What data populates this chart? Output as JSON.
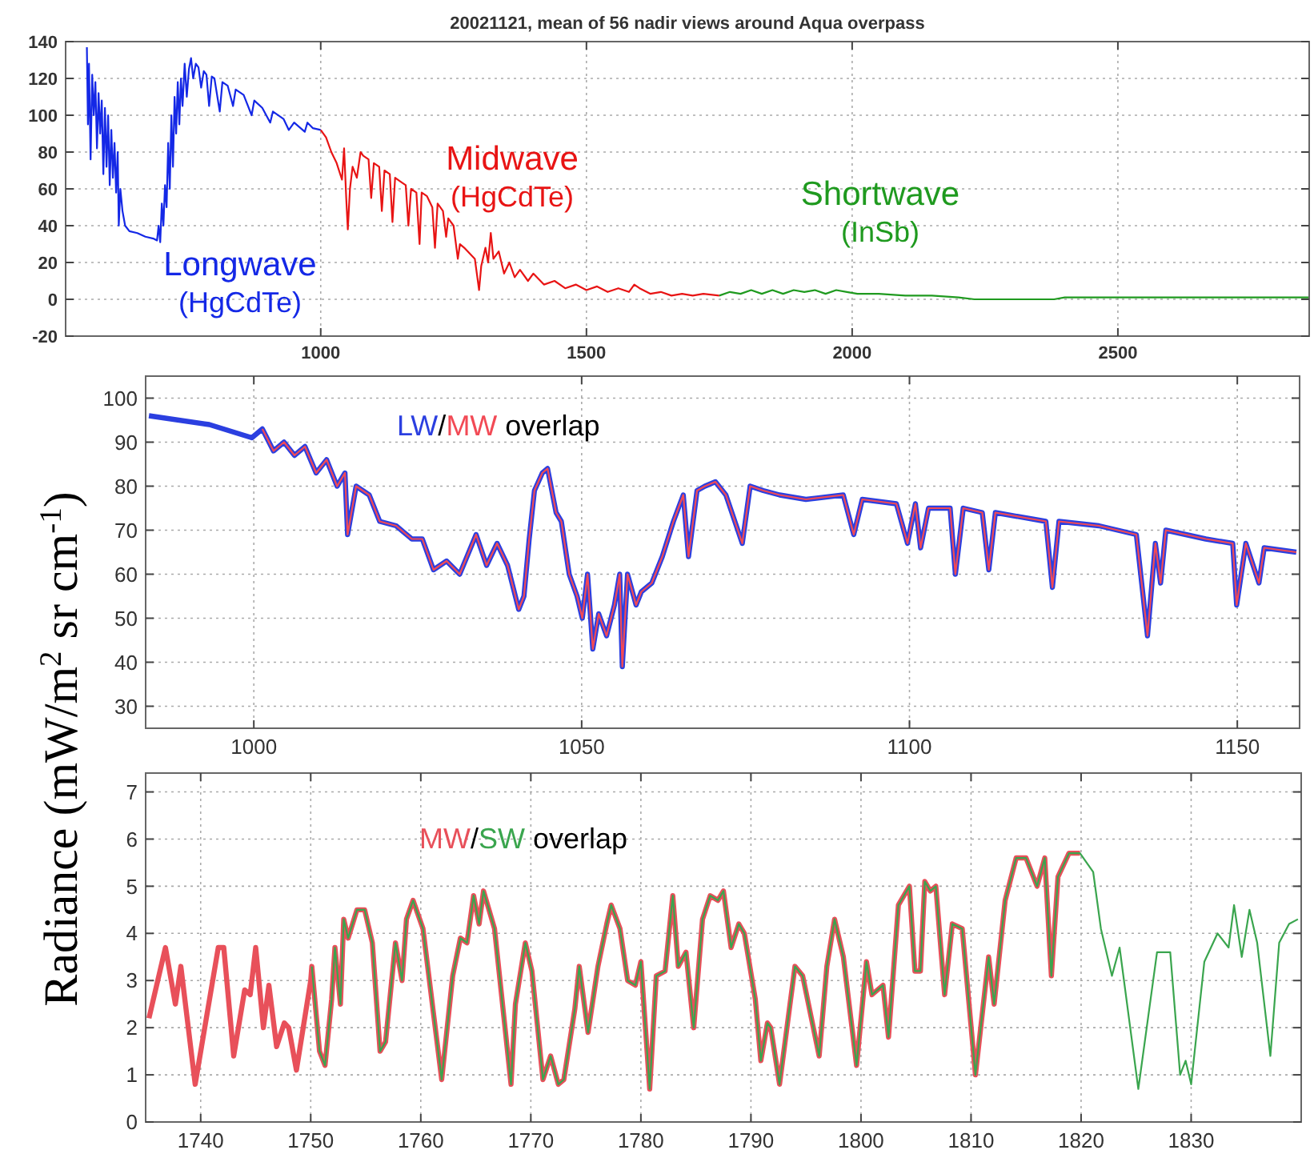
{
  "chart_data": [
    {
      "type": "line",
      "title": "20021121, mean of 56 nadir views around Aqua overpass",
      "xlim": [
        520,
        2860
      ],
      "ylim": [
        -20,
        140
      ],
      "xticks": [
        1000,
        1500,
        2000,
        2500
      ],
      "yticks": [
        -20,
        0,
        20,
        40,
        60,
        80,
        100,
        120,
        140
      ],
      "grid": true,
      "series": [
        {
          "name": "Longwave (HgCdTe)",
          "color": "#1428e6",
          "x": [
            560,
            562,
            564,
            567,
            570,
            573,
            576,
            579,
            582,
            585,
            588,
            591,
            594,
            597,
            600,
            603,
            606,
            609,
            612,
            615,
            618,
            620,
            623,
            627,
            632,
            640,
            655,
            670,
            685,
            692,
            695,
            698,
            701,
            704,
            707,
            710,
            713,
            716,
            719,
            722,
            725,
            728,
            731,
            734,
            737,
            740,
            744,
            748,
            752,
            756,
            760,
            765,
            770,
            775,
            780,
            785,
            790,
            795,
            800,
            810,
            815,
            825,
            835,
            840,
            855,
            870,
            875,
            890,
            905,
            910,
            930,
            940,
            950,
            970,
            975,
            985,
            1000
          ],
          "values": [
            137,
            95,
            128,
            76,
            122,
            100,
            118,
            82,
            112,
            90,
            108,
            68,
            104,
            72,
            100,
            62,
            92,
            66,
            85,
            58,
            80,
            40,
            60,
            48,
            40,
            37,
            36,
            34,
            33,
            32,
            40,
            31,
            52,
            40,
            62,
            50,
            85,
            60,
            100,
            72,
            110,
            90,
            118,
            95,
            120,
            105,
            128,
            110,
            125,
            131,
            120,
            128,
            126,
            115,
            124,
            122,
            105,
            121,
            120,
            102,
            118,
            116,
            105,
            114,
            111,
            100,
            108,
            104,
            96,
            102,
            98,
            92,
            96,
            91,
            96,
            93,
            92
          ]
        },
        {
          "name": "Midwave (HgCdTe)",
          "color": "#e81414",
          "x": [
            1000,
            1010,
            1020,
            1030,
            1040,
            1044,
            1048,
            1051,
            1055,
            1060,
            1068,
            1075,
            1080,
            1090,
            1095,
            1100,
            1110,
            1115,
            1120,
            1130,
            1135,
            1140,
            1150,
            1160,
            1165,
            1170,
            1180,
            1186,
            1190,
            1200,
            1210,
            1215,
            1220,
            1230,
            1236,
            1240,
            1250,
            1258,
            1262,
            1270,
            1280,
            1290,
            1298,
            1302,
            1310,
            1315,
            1320,
            1325,
            1335,
            1345,
            1355,
            1365,
            1375,
            1390,
            1400,
            1420,
            1440,
            1460,
            1480,
            1500,
            1520,
            1540,
            1560,
            1580,
            1590,
            1600,
            1620,
            1640,
            1660,
            1680,
            1700,
            1720,
            1750
          ],
          "values": [
            92,
            88,
            80,
            74,
            65,
            82,
            55,
            38,
            60,
            72,
            66,
            80,
            78,
            76,
            55,
            74,
            72,
            48,
            70,
            68,
            42,
            66,
            64,
            62,
            40,
            60,
            58,
            30,
            58,
            56,
            50,
            28,
            52,
            48,
            34,
            44,
            40,
            22,
            30,
            28,
            25,
            22,
            5,
            18,
            28,
            20,
            36,
            22,
            26,
            14,
            20,
            12,
            16,
            10,
            14,
            8,
            10,
            6,
            8,
            5,
            7,
            4,
            6,
            4,
            8,
            6,
            3,
            4,
            2,
            3,
            2,
            3,
            2
          ]
        },
        {
          "name": "Shortwave (InSb)",
          "color": "#1f9a1f",
          "x": [
            1750,
            1770,
            1790,
            1810,
            1830,
            1850,
            1870,
            1890,
            1910,
            1930,
            1950,
            1970,
            1990,
            2010,
            2050,
            2100,
            2150,
            2200,
            2230,
            2300,
            2380,
            2400,
            2500,
            2600,
            2700,
            2860
          ],
          "values": [
            2,
            4,
            3,
            5,
            3,
            5,
            3,
            5,
            4,
            5,
            3,
            5,
            4,
            3,
            3,
            2,
            2,
            1,
            0,
            0,
            0,
            1,
            1,
            1,
            1,
            1
          ]
        }
      ]
    },
    {
      "type": "line",
      "ylabel": "Radiance (mW/m$^{2}$ sr cm$^{-1}$)",
      "xlim": [
        983.5,
        1159.5
      ],
      "ylim": [
        25,
        105
      ],
      "xticks": [
        1000,
        1050,
        1100,
        1150
      ],
      "yticks": [
        30,
        40,
        50,
        60,
        70,
        80,
        90,
        100
      ],
      "grid": true,
      "annotations": [
        "/",
        "overlap"
      ],
      "series": [
        {
          "name": "LW",
          "color": "#2b3fe0",
          "x": [
            984,
            993.2,
            999.7,
            1001.3,
            1003,
            1004.6,
            1006.2,
            1007.8,
            1009.5,
            1011.1,
            1012.7,
            1013.9,
            1014.3,
            1015.6,
            1017.6,
            1019.2,
            1021.7,
            1024.1,
            1025.7,
            1027.4,
            1029.4,
            1031.4,
            1033.9,
            1035.5,
            1037.1,
            1038.7,
            1040.4,
            1041.2,
            1042,
            1042.8,
            1044,
            1044.8,
            1046.1,
            1046.9,
            1048.1,
            1049.3,
            1050.1,
            1050.9,
            1051.7,
            1052.6,
            1053.8,
            1055,
            1055.8,
            1056.2,
            1057,
            1058.3,
            1059.1,
            1060.7,
            1062.3,
            1064,
            1065.5,
            1066.3,
            1067.6,
            1068.8,
            1070.4,
            1072,
            1074.5,
            1075.7,
            1077.7,
            1080.2,
            1084.2,
            1089.9,
            1091.5,
            1092.8,
            1098,
            1099.7,
            1100.9,
            1101.7,
            1102.9,
            1106.2,
            1107,
            1108.2,
            1111.1,
            1112.1,
            1113.1,
            1120.8,
            1121.8,
            1122.8,
            1128.9,
            1134.6,
            1136.3,
            1137.5,
            1138.3,
            1139.1,
            1145.2,
            1149.3,
            1149.9,
            1151.3,
            1153.3,
            1154.1,
            1159
          ],
          "values": [
            96,
            94,
            91,
            93,
            88,
            90,
            87,
            89,
            83,
            86,
            80,
            83,
            69,
            80,
            78,
            72,
            71,
            68,
            68,
            61,
            63,
            60,
            69,
            62,
            67,
            62,
            52,
            55,
            68,
            79,
            83,
            84,
            74,
            72,
            60,
            55,
            50,
            60,
            43,
            51,
            46,
            53,
            60,
            39,
            60,
            53,
            56,
            58,
            64,
            72,
            78,
            64,
            79,
            80,
            81,
            78,
            67,
            80,
            79,
            78,
            77,
            78,
            69,
            77,
            76,
            67,
            76,
            66,
            75,
            75,
            60,
            75,
            74,
            61,
            74,
            72,
            57,
            72,
            71,
            69,
            46,
            67,
            58,
            70,
            68,
            67,
            53,
            67,
            58,
            66,
            65
          ]
        },
        {
          "name": "MW",
          "color": "#f24a55",
          "x": [
            1001.3,
            1003,
            1004.6,
            1006.2,
            1007.8,
            1009.5,
            1011.1,
            1012.7,
            1013.9,
            1014.3,
            1015.6,
            1017.6,
            1019.2,
            1021.7,
            1024.1,
            1025.7,
            1027.4,
            1029.4,
            1031.4,
            1033.9,
            1035.5,
            1037.1,
            1038.7,
            1040.4,
            1041.2,
            1042,
            1042.8,
            1044,
            1044.8,
            1046.1,
            1046.9,
            1048.1,
            1049.3,
            1050.1,
            1050.9,
            1051.7,
            1052.6,
            1053.8,
            1055,
            1055.8,
            1056.2,
            1057,
            1058.3,
            1059.1,
            1060.7,
            1062.3,
            1064,
            1065.5,
            1066.3,
            1067.6,
            1068.8,
            1070.4,
            1072,
            1074.5,
            1075.7,
            1077.7,
            1080.2,
            1084.2,
            1089.9,
            1091.5,
            1092.8,
            1098,
            1099.7,
            1100.9,
            1101.7,
            1102.9,
            1106.2,
            1107,
            1108.2,
            1111.1,
            1112.1,
            1113.1,
            1120.8,
            1121.8,
            1122.8,
            1128.9,
            1134.6,
            1136.3,
            1137.5,
            1138.3,
            1139.1,
            1145.2,
            1149.3,
            1149.9,
            1151.3,
            1153.3,
            1154.1,
            1159
          ],
          "values": [
            93,
            88,
            90,
            87,
            89,
            83,
            86,
            80,
            83,
            69,
            80,
            78,
            72,
            71,
            68,
            68,
            61,
            63,
            60,
            69,
            62,
            67,
            62,
            52,
            55,
            68,
            79,
            83,
            84,
            74,
            72,
            60,
            55,
            50,
            60,
            43,
            51,
            46,
            53,
            60,
            39,
            60,
            53,
            56,
            58,
            64,
            72,
            78,
            64,
            79,
            80,
            81,
            78,
            67,
            80,
            79,
            78,
            77,
            78,
            69,
            77,
            76,
            67,
            76,
            66,
            75,
            75,
            60,
            75,
            74,
            61,
            74,
            72,
            57,
            72,
            71,
            69,
            46,
            67,
            58,
            70,
            68,
            67,
            53,
            67,
            58,
            66,
            65
          ]
        }
      ]
    },
    {
      "type": "line",
      "xlim": [
        1735,
        1840
      ],
      "ylim": [
        0,
        7.4
      ],
      "xticks": [
        1740,
        1750,
        1760,
        1770,
        1780,
        1790,
        1800,
        1810,
        1820,
        1830
      ],
      "yticks": [
        0,
        1,
        2,
        3,
        4,
        5,
        6,
        7
      ],
      "grid": true,
      "annotations": [
        "/",
        "overlap"
      ],
      "series": [
        {
          "name": "MW",
          "color": "#e8505a",
          "x": [
            1735.3,
            1736.8,
            1737.7,
            1738.2,
            1739.5,
            1741.6,
            1742.1,
            1743,
            1744,
            1744.5,
            1745,
            1745.7,
            1746.2,
            1746.9,
            1747.6,
            1748,
            1748.7,
            1750,
            1750.1,
            1750.8,
            1751.3,
            1751.9,
            1752.2,
            1752.7,
            1753,
            1753.4,
            1754.2,
            1754.9,
            1755.6,
            1756.3,
            1756.8,
            1757.7,
            1758.3,
            1758.7,
            1759.3,
            1760.2,
            1761.9,
            1762.9,
            1763.6,
            1764.2,
            1764.8,
            1765.3,
            1765.7,
            1766.7,
            1768.2,
            1768.6,
            1769.5,
            1770.1,
            1771.1,
            1771.8,
            1772.5,
            1773,
            1774,
            1774.4,
            1775.2,
            1776.1,
            1776.9,
            1777.3,
            1778.1,
            1778.8,
            1779.5,
            1780,
            1780.8,
            1781.4,
            1782.2,
            1782.9,
            1783.4,
            1784.1,
            1784.8,
            1785.6,
            1786.3,
            1787,
            1787.5,
            1788.2,
            1788.9,
            1789.4,
            1790.4,
            1790.9,
            1791.5,
            1791.8,
            1792.6,
            1794,
            1794.7,
            1796.2,
            1796.9,
            1797.6,
            1798.4,
            1799.6,
            1800.5,
            1801,
            1802,
            1802.5,
            1803.4,
            1804.4,
            1804.9,
            1805.4,
            1805.8,
            1806.3,
            1806.8,
            1807.6,
            1808.3,
            1809.2,
            1810.4,
            1811.6,
            1812.1,
            1813.1,
            1814.1,
            1815,
            1816,
            1816.7,
            1817.3,
            1817.9,
            1818.9,
            1819.9
          ],
          "values": [
            2.2,
            3.7,
            2.5,
            3.3,
            0.8,
            3.7,
            3.7,
            1.4,
            2.8,
            2.7,
            3.7,
            2.0,
            2.9,
            1.6,
            2.1,
            2.0,
            1.1,
            3.0,
            3.3,
            1.5,
            1.2,
            2.6,
            3.7,
            2.5,
            4.3,
            3.9,
            4.5,
            4.5,
            3.8,
            1.5,
            1.7,
            3.8,
            3.0,
            4.3,
            4.7,
            4.1,
            0.9,
            3.1,
            3.9,
            3.8,
            4.8,
            4.2,
            4.9,
            4.1,
            0.8,
            2.5,
            3.8,
            3.2,
            0.9,
            1.4,
            0.8,
            0.9,
            2.4,
            3.3,
            1.9,
            3.3,
            4.2,
            4.6,
            4.1,
            3.0,
            2.9,
            3.4,
            0.7,
            3.1,
            3.2,
            4.8,
            3.3,
            3.6,
            2.0,
            4.3,
            4.8,
            4.7,
            4.9,
            3.7,
            4.2,
            4.0,
            2.6,
            1.3,
            2.1,
            2.0,
            0.8,
            3.3,
            3.1,
            1.4,
            3.3,
            4.3,
            3.5,
            1.2,
            3.4,
            2.7,
            2.9,
            1.8,
            4.6,
            5.0,
            3.2,
            3.2,
            5.1,
            4.9,
            5.0,
            2.7,
            4.2,
            4.1,
            1.0,
            3.5,
            2.5,
            4.7,
            5.6,
            5.6,
            5.0,
            5.6,
            3.1,
            5.2,
            5.7,
            5.7
          ]
        },
        {
          "name": "SW",
          "color": "#3aa54e",
          "x": [
            1750.1,
            1750.8,
            1751.3,
            1751.9,
            1752.2,
            1752.7,
            1753,
            1753.4,
            1754.2,
            1754.9,
            1755.6,
            1756.3,
            1756.8,
            1757.7,
            1758.3,
            1758.7,
            1759.3,
            1760.2,
            1761.9,
            1762.9,
            1763.6,
            1764.2,
            1764.8,
            1765.3,
            1765.7,
            1766.7,
            1768.2,
            1768.6,
            1769.5,
            1770.1,
            1771.1,
            1771.8,
            1772.5,
            1773,
            1774,
            1774.4,
            1775.2,
            1776.1,
            1776.9,
            1777.3,
            1778.1,
            1778.8,
            1779.5,
            1780,
            1780.8,
            1781.4,
            1782.2,
            1782.9,
            1783.4,
            1784.1,
            1784.8,
            1785.6,
            1786.3,
            1787,
            1787.5,
            1788.2,
            1788.9,
            1789.4,
            1790.4,
            1790.9,
            1791.5,
            1791.8,
            1792.6,
            1794,
            1794.7,
            1796.2,
            1796.9,
            1797.6,
            1798.4,
            1799.6,
            1800.5,
            1801,
            1802,
            1802.5,
            1803.4,
            1804.4,
            1804.9,
            1805.4,
            1805.8,
            1806.3,
            1806.8,
            1807.6,
            1808.3,
            1809.2,
            1810.4,
            1811.6,
            1812.1,
            1813.1,
            1814.1,
            1815,
            1816,
            1816.7,
            1817.3,
            1817.9,
            1818.9,
            1819.9,
            1821.1,
            1821.8,
            1822.8,
            1823.5,
            1825.2,
            1826.9,
            1828.1,
            1829,
            1829.5,
            1830,
            1831.2,
            1832.4,
            1833.4,
            1833.9,
            1834.6,
            1835.3,
            1836,
            1837.2,
            1838,
            1838.9,
            1839.7
          ],
          "values": [
            3.3,
            1.5,
            1.2,
            2.6,
            3.7,
            2.5,
            4.3,
            3.9,
            4.5,
            4.5,
            3.8,
            1.5,
            1.7,
            3.8,
            3.0,
            4.3,
            4.7,
            4.1,
            0.9,
            3.1,
            3.9,
            3.8,
            4.8,
            4.2,
            4.9,
            4.1,
            0.8,
            2.5,
            3.8,
            3.2,
            0.9,
            1.4,
            0.8,
            0.9,
            2.4,
            3.3,
            1.9,
            3.3,
            4.2,
            4.6,
            4.1,
            3.0,
            2.9,
            3.4,
            0.7,
            3.1,
            3.2,
            4.8,
            3.3,
            3.6,
            2.0,
            4.3,
            4.8,
            4.7,
            4.9,
            3.7,
            4.2,
            4.0,
            2.6,
            1.3,
            2.1,
            2.0,
            0.8,
            3.3,
            3.1,
            1.4,
            3.3,
            4.3,
            3.5,
            1.2,
            3.4,
            2.7,
            2.9,
            1.8,
            4.6,
            5.0,
            3.2,
            3.2,
            5.1,
            4.9,
            5.0,
            2.7,
            4.2,
            4.1,
            1.0,
            3.5,
            2.5,
            4.7,
            5.6,
            5.6,
            5.0,
            5.6,
            3.1,
            5.2,
            5.7,
            5.7,
            5.3,
            4.1,
            3.1,
            3.7,
            0.7,
            3.6,
            3.6,
            1.0,
            1.3,
            0.8,
            3.4,
            4.0,
            3.7,
            4.6,
            3.5,
            4.5,
            3.8,
            1.4,
            3.8,
            4.2,
            4.3
          ]
        }
      ]
    }
  ]
}
